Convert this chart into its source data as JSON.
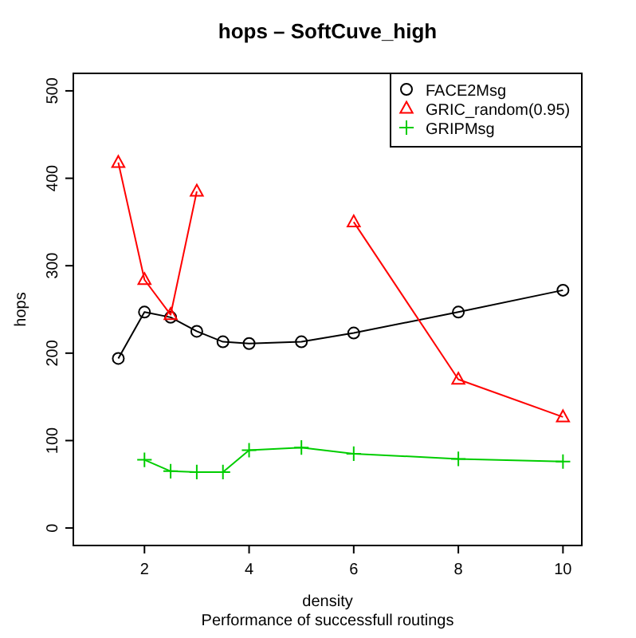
{
  "chart_data": {
    "type": "line",
    "title": "hops – SoftCuve_high",
    "xlabel": "density",
    "ylabel": "hops",
    "annotations": [
      "Performance of successfull routings"
    ],
    "x": [
      1.5,
      2,
      2.5,
      3,
      3.5,
      4,
      5,
      6,
      8,
      10
    ],
    "xlim": [
      0.64,
      10.36
    ],
    "xticks": [
      2,
      4,
      6,
      8,
      10
    ],
    "ylim": [
      -20,
      520
    ],
    "yticks": [
      0,
      100,
      200,
      300,
      400,
      500
    ],
    "grid": false,
    "legend": "top right",
    "series": [
      {
        "name": "FACE2Msg",
        "color": "#000000",
        "marker": "circle",
        "values": [
          194,
          247,
          241,
          225,
          213,
          211,
          213,
          223,
          247,
          272
        ]
      },
      {
        "name": "GRIC_random(0.95)",
        "color": "#ff0000",
        "marker": "triangle",
        "values": [
          418,
          284,
          244,
          385,
          null,
          null,
          null,
          350,
          170,
          127
        ]
      },
      {
        "name": "GRIPMsg",
        "color": "#00cd00",
        "marker": "cross",
        "values": [
          null,
          78,
          65,
          64,
          64,
          89,
          92,
          85,
          79,
          76
        ]
      }
    ]
  }
}
